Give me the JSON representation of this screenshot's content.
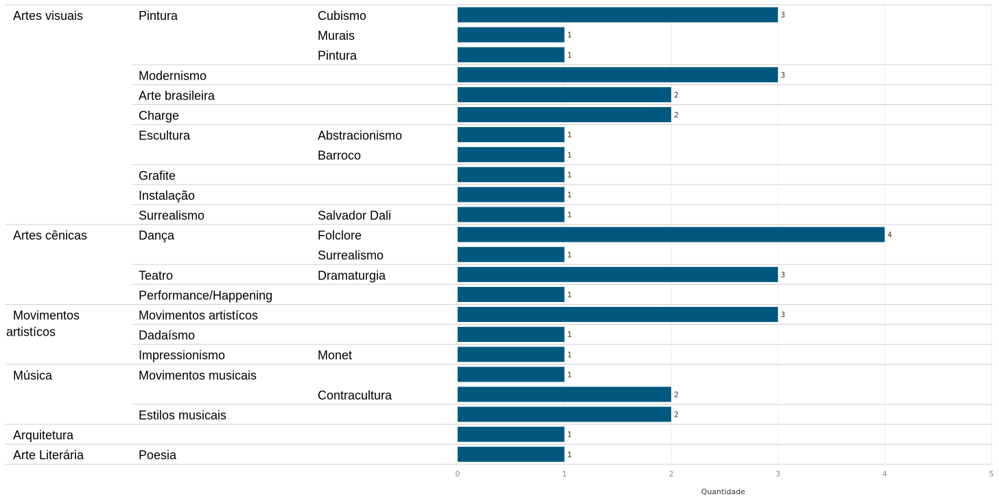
{
  "chart_data": {
    "type": "bar",
    "orientation": "horizontal",
    "xlabel": "Quantidade",
    "xlim": [
      0,
      5
    ],
    "x_ticks": [
      "0",
      "1",
      "2",
      "3",
      "4",
      "5"
    ],
    "grid": true,
    "bar_color": "#00587f",
    "rows": [
      {
        "l1": "Artes visuais",
        "l2": "Pintura",
        "l3": "Cubismo",
        "value": 3
      },
      {
        "l1": "",
        "l2": "",
        "l3": "Murais",
        "value": 1
      },
      {
        "l1": "",
        "l2": "",
        "l3": "Pintura",
        "value": 1
      },
      {
        "l1": "",
        "l2": "Modernismo",
        "l3": "",
        "value": 3
      },
      {
        "l1": "",
        "l2": "Arte brasileira",
        "l3": "",
        "value": 2
      },
      {
        "l1": "",
        "l2": "Charge",
        "l3": "",
        "value": 2
      },
      {
        "l1": "",
        "l2": "Escultura",
        "l3": "Abstracionismo",
        "value": 1
      },
      {
        "l1": "",
        "l2": "",
        "l3": "Barroco",
        "value": 1
      },
      {
        "l1": "",
        "l2": "Grafite",
        "l3": "",
        "value": 1
      },
      {
        "l1": "",
        "l2": "Instalação",
        "l3": "",
        "value": 1
      },
      {
        "l1": "",
        "l2": "Surrealismo",
        "l3": "Salvador Dali",
        "value": 1
      },
      {
        "l1": "Artes cênicas",
        "l2": "Dança",
        "l3": "Folclore",
        "value": 4
      },
      {
        "l1": "",
        "l2": "",
        "l3": "Surrealismo",
        "value": 1
      },
      {
        "l1": "",
        "l2": "Teatro",
        "l3": "Dramaturgia",
        "value": 3
      },
      {
        "l1": "",
        "l2": "Performance/Happening",
        "l3": "",
        "value": 1
      },
      {
        "l1": "Movimentos artistícos",
        "l2": "Movimentos artistícos",
        "l3": "",
        "value": 3
      },
      {
        "l1": "",
        "l2": "Dadaísmo",
        "l3": "",
        "value": 1
      },
      {
        "l1": "",
        "l2": "Impressionismo",
        "l3": "Monet",
        "value": 1
      },
      {
        "l1": "Música",
        "l2": "Movimentos musicais",
        "l3": "",
        "value": 1
      },
      {
        "l1": "",
        "l2": "",
        "l3": "Contracultura",
        "value": 2
      },
      {
        "l1": "",
        "l2": "Estilos musicais",
        "l3": "",
        "value": 2
      },
      {
        "l1": "Arquitetura",
        "l2": "",
        "l3": "",
        "value": 1
      },
      {
        "l1": "Arte Literária",
        "l2": "Poesia",
        "l3": "",
        "value": 1
      }
    ]
  }
}
